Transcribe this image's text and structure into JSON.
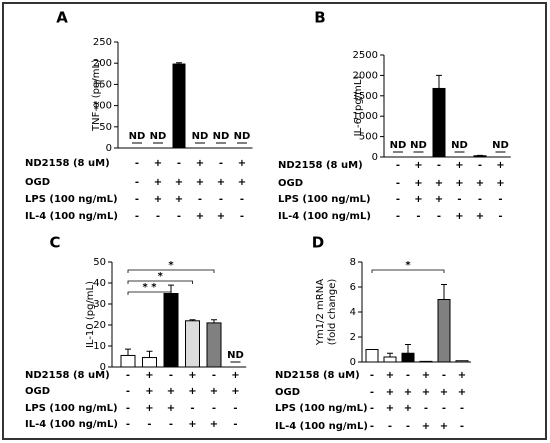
{
  "chart_data": [
    {
      "type": "bar",
      "panel": "A",
      "y_label": [
        "TNF-α (pg/mL)"
      ],
      "categories": [
        null,
        null,
        null,
        null,
        null,
        null
      ],
      "values": [
        null,
        null,
        198,
        null,
        null,
        null
      ],
      "errors": [
        null,
        null,
        3,
        null,
        null,
        null
      ],
      "value_labels": [
        "ND",
        "ND",
        null,
        "ND",
        "ND",
        "ND"
      ],
      "colors": [
        "#ffffff",
        "#ffffff",
        "#000000",
        "#ffffff",
        "#ffffff",
        "#ffffff"
      ],
      "ylim": [
        0,
        250
      ],
      "yticks": [
        0,
        50,
        100,
        150,
        200,
        250
      ],
      "conditions": [
        {
          "label": "ND2158 (8 uM)",
          "signs": [
            "-",
            "+",
            "-",
            "+",
            "-",
            "+"
          ]
        },
        {
          "label": "OGD",
          "signs": [
            "-",
            "+",
            "+",
            "+",
            "+",
            "+"
          ]
        },
        {
          "label": "LPS (100 ng/mL)",
          "signs": [
            "-",
            "+",
            "+",
            "-",
            "-",
            "-"
          ]
        },
        {
          "label": "IL-4 (100 ng/mL)",
          "signs": [
            "-",
            "-",
            "-",
            "+",
            "+",
            "-"
          ]
        }
      ]
    },
    {
      "type": "bar",
      "panel": "B",
      "y_label": [
        "IL-6 (pg/mL)"
      ],
      "categories": [
        null,
        null,
        null,
        null,
        null,
        null
      ],
      "values": [
        null,
        null,
        1680,
        null,
        30,
        null
      ],
      "errors": [
        null,
        null,
        320,
        null,
        10,
        null
      ],
      "value_labels": [
        "ND",
        "ND",
        null,
        "ND",
        null,
        "ND"
      ],
      "colors": [
        "#ffffff",
        "#ffffff",
        "#000000",
        "#ffffff",
        "#000000",
        "#ffffff"
      ],
      "ylim": [
        0,
        2500
      ],
      "yticks": [
        0,
        500,
        1000,
        1500,
        2000,
        2500
      ],
      "conditions": [
        {
          "label": "ND2158 (8 uM)",
          "signs": [
            "-",
            "+",
            "-",
            "+",
            "-",
            "+"
          ]
        },
        {
          "label": "OGD",
          "signs": [
            "-",
            "+",
            "+",
            "+",
            "+",
            "+"
          ]
        },
        {
          "label": "LPS (100 ng/mL)",
          "signs": [
            "-",
            "+",
            "+",
            "-",
            "-",
            "-"
          ]
        },
        {
          "label": "IL-4 (100 ng/mL)",
          "signs": [
            "-",
            "-",
            "-",
            "+",
            "+",
            "-"
          ]
        }
      ]
    },
    {
      "type": "bar",
      "panel": "C",
      "y_label": [
        "IL-10 (pg/mL)"
      ],
      "categories": [
        null,
        null,
        null,
        null,
        null,
        null
      ],
      "values": [
        5.5,
        4.5,
        35,
        22,
        21,
        null
      ],
      "errors": [
        3,
        3,
        4,
        0.5,
        1.5,
        null
      ],
      "value_labels": [
        null,
        null,
        null,
        null,
        null,
        "ND"
      ],
      "colors": [
        "#ffffff",
        "#ffffff",
        "#000000",
        "#dcdcdc",
        "#808080",
        "#ffffff"
      ],
      "ylim": [
        0,
        50
      ],
      "yticks": [
        0,
        10,
        20,
        30,
        40,
        50
      ],
      "significance": [
        {
          "text": "*",
          "bars": [
            0,
            4
          ]
        },
        {
          "text": "*",
          "bars": [
            0,
            3
          ]
        },
        {
          "text": "* *",
          "bars": [
            0,
            2
          ]
        }
      ],
      "conditions": [
        {
          "label": "ND2158 (8 uM)",
          "signs": [
            "-",
            "+",
            "-",
            "+",
            "-",
            "+"
          ]
        },
        {
          "label": "OGD",
          "signs": [
            "-",
            "+",
            "+",
            "+",
            "+",
            "+"
          ]
        },
        {
          "label": "LPS (100 ng/mL)",
          "signs": [
            "-",
            "+",
            "+",
            "-",
            "-",
            "-"
          ]
        },
        {
          "label": "IL-4 (100 ng/mL)",
          "signs": [
            "-",
            "-",
            "-",
            "+",
            "+",
            "-"
          ]
        }
      ]
    },
    {
      "type": "bar",
      "panel": "D",
      "y_label": [
        "Ym1/2 mRNA",
        "(fold change)"
      ],
      "categories": [
        null,
        null,
        null,
        null,
        null,
        null
      ],
      "values": [
        1.0,
        0.4,
        0.7,
        0.05,
        5.0,
        0.1
      ],
      "errors": [
        null,
        0.3,
        0.7,
        null,
        1.2,
        null
      ],
      "colors": [
        "#ffffff",
        "#ffffff",
        "#000000",
        "#ffffff",
        "#808080",
        "#ffffff"
      ],
      "ylim": [
        0,
        8
      ],
      "yticks": [
        0,
        2,
        4,
        6,
        8
      ],
      "significance": [
        {
          "text": "*",
          "bars": [
            0,
            4
          ]
        }
      ],
      "conditions": [
        {
          "label": "ND2158 (8 uM)",
          "signs": [
            "-",
            "+",
            "-",
            "+",
            "-",
            "+"
          ]
        },
        {
          "label": "OGD",
          "signs": [
            "-",
            "+",
            "+",
            "+",
            "+",
            "+"
          ]
        },
        {
          "label": "LPS (100 ng/mL)",
          "signs": [
            "-",
            "+",
            "+",
            "-",
            "-",
            "-"
          ]
        },
        {
          "label": "IL-4 (100 ng/mL)",
          "signs": [
            "-",
            "-",
            "-",
            "+",
            "+",
            "-"
          ]
        }
      ]
    }
  ]
}
